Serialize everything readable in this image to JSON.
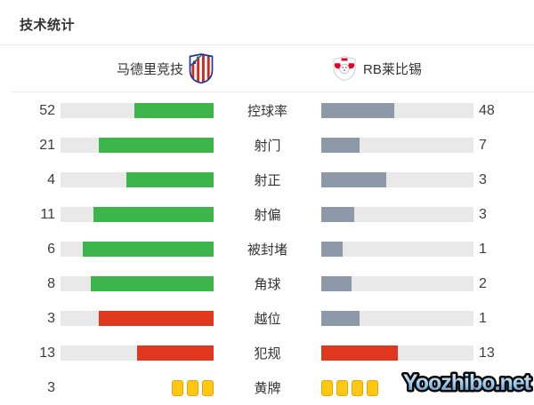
{
  "title": "技术统计",
  "teams": {
    "home": {
      "name": "马德里竞技"
    },
    "away": {
      "name": "RB莱比锡"
    }
  },
  "colors": {
    "green": "#3cb54a",
    "red": "#e0381f",
    "gray": "#8d99a9",
    "track": "#e9e9e9",
    "yellow": "#ffc913"
  },
  "rows": [
    {
      "type": "bar",
      "label": "控球率",
      "left": "52",
      "right": "48",
      "left_pct": 52,
      "right_pct": 48,
      "left_color": "green",
      "right_color": "gray"
    },
    {
      "type": "bar",
      "label": "射门",
      "left": "21",
      "right": "7",
      "left_pct": 75,
      "right_pct": 25,
      "left_color": "green",
      "right_color": "gray"
    },
    {
      "type": "bar",
      "label": "射正",
      "left": "4",
      "right": "3",
      "left_pct": 57.1,
      "right_pct": 42.9,
      "left_color": "green",
      "right_color": "gray"
    },
    {
      "type": "bar",
      "label": "射偏",
      "left": "11",
      "right": "3",
      "left_pct": 78.6,
      "right_pct": 21.4,
      "left_color": "green",
      "right_color": "gray"
    },
    {
      "type": "bar",
      "label": "被封堵",
      "left": "6",
      "right": "1",
      "left_pct": 85.7,
      "right_pct": 14.3,
      "left_color": "green",
      "right_color": "gray"
    },
    {
      "type": "bar",
      "label": "角球",
      "left": "8",
      "right": "2",
      "left_pct": 80,
      "right_pct": 20,
      "left_color": "green",
      "right_color": "gray"
    },
    {
      "type": "bar",
      "label": "越位",
      "left": "3",
      "right": "1",
      "left_pct": 75,
      "right_pct": 25,
      "left_color": "red",
      "right_color": "gray"
    },
    {
      "type": "bar",
      "label": "犯规",
      "left": "13",
      "right": "13",
      "left_pct": 50,
      "right_pct": 50,
      "left_color": "red",
      "right_color": "red"
    },
    {
      "type": "cards",
      "label": "黄牌",
      "left": "3",
      "right": "4",
      "left_cards": 3,
      "right_cards": 4
    }
  ],
  "watermark": "Yoozhibo.net",
  "chart_data": {
    "type": "bar",
    "title": "技术统计",
    "orientation": "paired-horizontal",
    "categories": [
      "控球率",
      "射门",
      "射正",
      "射偏",
      "被封堵",
      "角球",
      "越位",
      "犯规",
      "黄牌"
    ],
    "series": [
      {
        "name": "马德里竞技",
        "values": [
          52,
          21,
          4,
          11,
          6,
          8,
          3,
          13,
          3
        ]
      },
      {
        "name": "RB莱比锡",
        "values": [
          48,
          7,
          3,
          3,
          1,
          2,
          1,
          13,
          4
        ]
      }
    ],
    "notes": "bar fill fraction = value / (home value + away value); 控球率 values are percentages; 黄牌 shown as yellow card icons"
  }
}
